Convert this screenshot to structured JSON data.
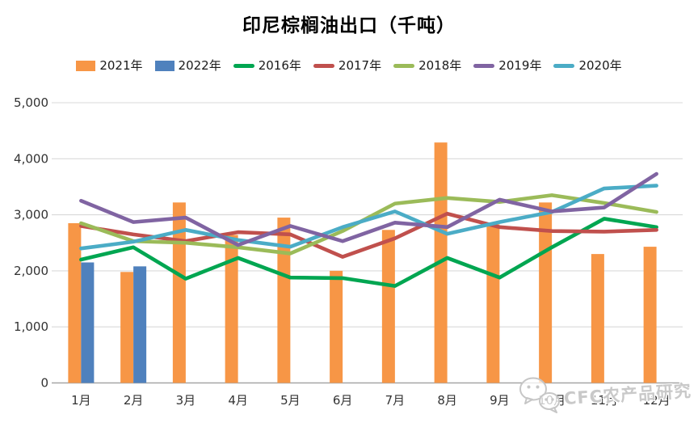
{
  "title": "印尼棕榈油出口（千吨）",
  "watermark": {
    "text": "CFC农产品研究",
    "logo": "wechat-logo"
  },
  "axis": {
    "ytick_labels": [
      "0",
      "1,000",
      "2,000",
      "3,000",
      "4,000",
      "5,000"
    ],
    "xtick_labels": [
      "1月",
      "2月",
      "3月",
      "4月",
      "5月",
      "6月",
      "7月",
      "8月",
      "9月",
      "10月",
      "11月",
      "12月"
    ]
  },
  "colors": {
    "gridline": "#D9D9D9",
    "axis_line": "#A6A6A6",
    "tick_text": "#333333"
  },
  "chart_data": {
    "type": "bar",
    "subtype": "combo bar+line",
    "title": "印尼棕榈油出口（千吨）",
    "xlabel": "",
    "ylabel": "",
    "ylim": [
      0,
      5000
    ],
    "ytick_interval": 1000,
    "grid": true,
    "legend_position": "top",
    "categories": [
      "1月",
      "2月",
      "3月",
      "4月",
      "5月",
      "6月",
      "7月",
      "8月",
      "9月",
      "10月",
      "11月",
      "12月"
    ],
    "series": [
      {
        "name": "2021年",
        "type": "bar",
        "color": "#F79646",
        "values": [
          2850,
          1980,
          3220,
          2640,
          2950,
          2000,
          2730,
          4290,
          2830,
          3220,
          2300,
          2430
        ]
      },
      {
        "name": "2022年",
        "type": "bar",
        "color": "#4F81BD",
        "values": [
          2150,
          2080,
          null,
          null,
          null,
          null,
          null,
          null,
          null,
          null,
          null,
          null
        ]
      },
      {
        "name": "2016年",
        "type": "line",
        "color": "#00A651",
        "values": [
          2200,
          2420,
          1860,
          2230,
          1880,
          1870,
          1730,
          2230,
          1880,
          2420,
          2930,
          2780
        ]
      },
      {
        "name": "2017年",
        "type": "line",
        "color": "#C0504D",
        "values": [
          2800,
          2650,
          2530,
          2690,
          2650,
          2250,
          2580,
          3020,
          2780,
          2710,
          2700,
          2730
        ]
      },
      {
        "name": "2018年",
        "type": "line",
        "color": "#9BBB59",
        "values": [
          2850,
          2530,
          2500,
          2420,
          2310,
          2710,
          3200,
          3300,
          3230,
          3350,
          3210,
          3050
        ]
      },
      {
        "name": "2019年",
        "type": "line",
        "color": "#8064A2",
        "values": [
          3250,
          2870,
          2950,
          2460,
          2800,
          2530,
          2860,
          2780,
          3270,
          3060,
          3130,
          3730
        ]
      },
      {
        "name": "2020年",
        "type": "line",
        "color": "#4BACC6",
        "values": [
          2400,
          2520,
          2730,
          2550,
          2430,
          2780,
          3060,
          2660,
          2870,
          3050,
          3470,
          3520
        ]
      }
    ]
  }
}
